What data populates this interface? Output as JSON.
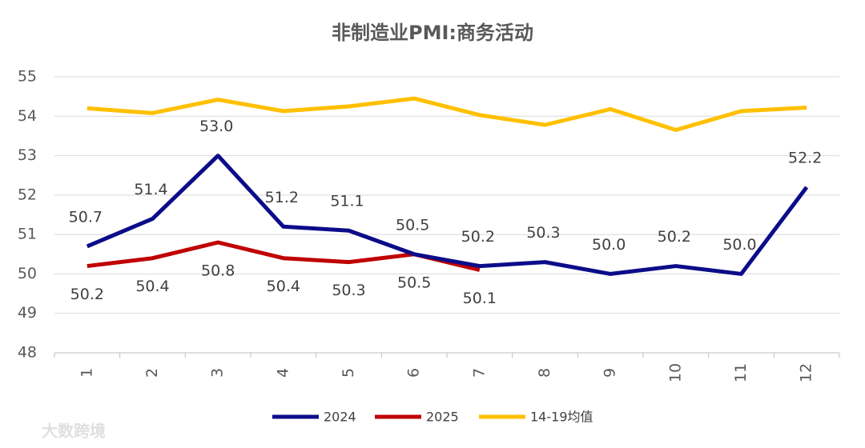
{
  "chart_data": {
    "type": "line",
    "title": "非制造业PMI:商务活动",
    "categories": [
      "1",
      "2",
      "3",
      "4",
      "5",
      "6",
      "7",
      "8",
      "9",
      "10",
      "11",
      "12"
    ],
    "series": [
      {
        "name": "2024",
        "color": "#0c0c8a",
        "values": [
          50.7,
          51.4,
          53.0,
          51.2,
          51.1,
          50.5,
          50.2,
          50.3,
          50.0,
          50.2,
          50.0,
          52.2
        ],
        "value_labels": [
          "50.7",
          "51.4",
          "53.0",
          "51.2",
          "51.1",
          "50.5",
          "50.2",
          "50.3",
          "50.0",
          "50.2",
          "50.0",
          "52.2"
        ],
        "label_position": "above"
      },
      {
        "name": "2025",
        "color": "#c00000",
        "values": [
          50.2,
          50.4,
          50.8,
          50.4,
          50.3,
          50.5,
          50.1,
          null,
          null,
          null,
          null,
          null
        ],
        "label_position": "below"
      },
      {
        "name": "14-19均值",
        "color": "#ffc000",
        "values": [
          54.2,
          54.08,
          54.42,
          54.13,
          54.25,
          54.45,
          54.03,
          53.78,
          54.18,
          53.65,
          54.13,
          54.22
        ]
      }
    ],
    "ylim": [
      48,
      55
    ],
    "yticks": [
      48,
      49,
      50,
      51,
      52,
      53,
      54,
      55
    ],
    "grid": true,
    "legend": "bottom",
    "watermark": "大数跨境"
  }
}
